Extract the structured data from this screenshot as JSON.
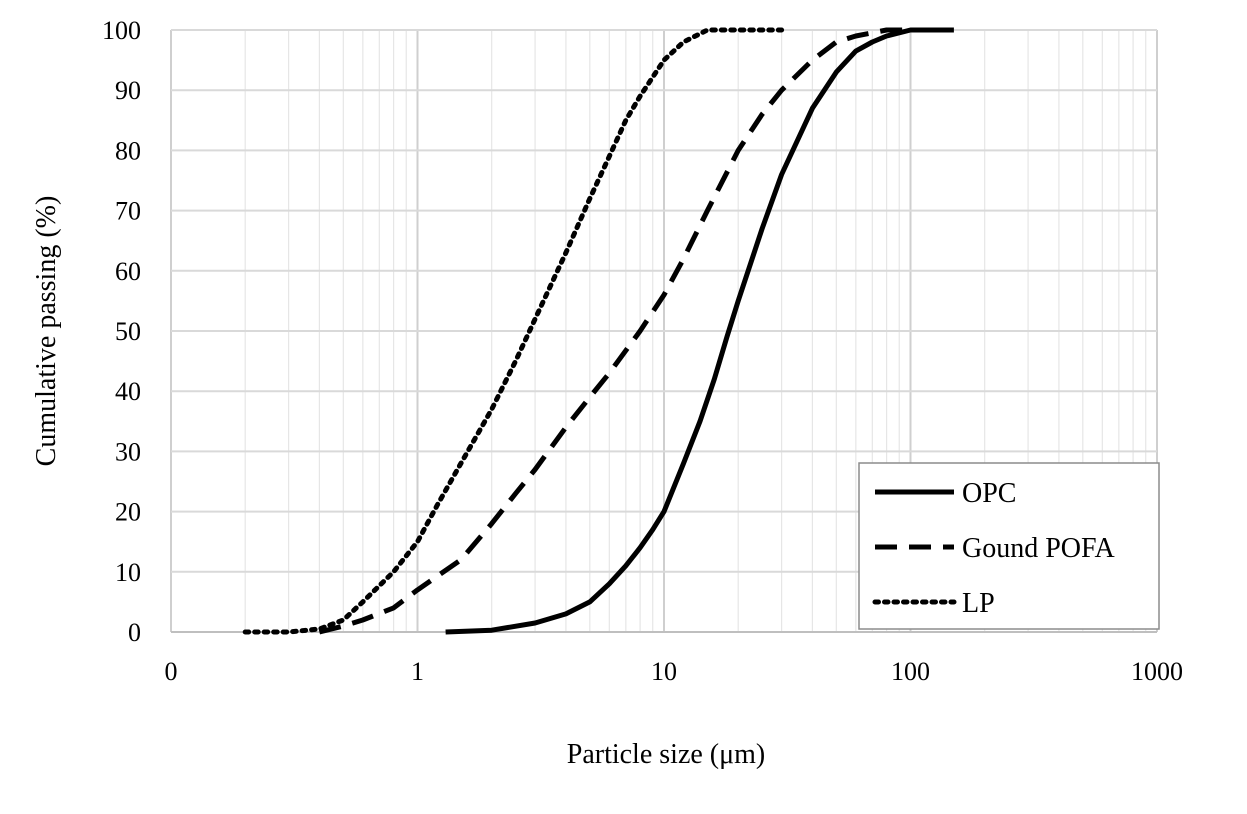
{
  "chart_data": {
    "type": "line",
    "title": "",
    "xlabel": "Particle size (μm)",
    "ylabel": "Cumulative passing (%)",
    "x_scale": "log",
    "xlim": [
      0.1,
      1000
    ],
    "ylim": [
      0,
      100
    ],
    "x_tick_labels": [
      "0",
      "1",
      "10",
      "100",
      "1000"
    ],
    "y_ticks": [
      0,
      10,
      20,
      30,
      40,
      50,
      60,
      70,
      80,
      90,
      100
    ],
    "grid": true,
    "legend_position": "bottom-right",
    "series": [
      {
        "name": "OPC",
        "line_style": "solid",
        "color": "#000000",
        "x": [
          1.3,
          2,
          3,
          4,
          5,
          6,
          7,
          8,
          9,
          10,
          12,
          14,
          16,
          18,
          20,
          25,
          30,
          40,
          50,
          60,
          70,
          80,
          100,
          150
        ],
        "y": [
          0,
          0.3,
          1.5,
          3,
          5,
          8,
          11,
          14,
          17,
          20,
          28,
          35,
          42,
          49,
          55,
          67,
          76,
          87,
          93,
          96.5,
          98,
          99,
          100,
          100
        ]
      },
      {
        "name": "Gound POFA",
        "line_style": "dashed",
        "color": "#000000",
        "x": [
          0.4,
          0.5,
          0.6,
          0.8,
          1,
          1.5,
          2,
          2.5,
          3,
          4,
          5,
          6,
          8,
          10,
          12,
          15,
          20,
          25,
          30,
          40,
          50,
          60,
          80,
          100
        ],
        "y": [
          0,
          1,
          2,
          4,
          7,
          12,
          18,
          23,
          27,
          34,
          39,
          43,
          50,
          56,
          62,
          70,
          80,
          86,
          90,
          95,
          98,
          99,
          100,
          100
        ]
      },
      {
        "name": "LP",
        "line_style": "dotted",
        "color": "#000000",
        "x": [
          0.2,
          0.3,
          0.4,
          0.5,
          0.6,
          0.8,
          1,
          1.2,
          1.5,
          2,
          2.5,
          3,
          4,
          5,
          6,
          7,
          8,
          10,
          12,
          15,
          20,
          30
        ],
        "y": [
          0,
          0,
          0.5,
          2,
          5,
          10,
          15,
          21,
          28,
          37,
          45,
          52,
          63,
          72,
          79,
          85,
          89,
          95,
          98,
          100,
          100,
          100
        ]
      }
    ]
  }
}
